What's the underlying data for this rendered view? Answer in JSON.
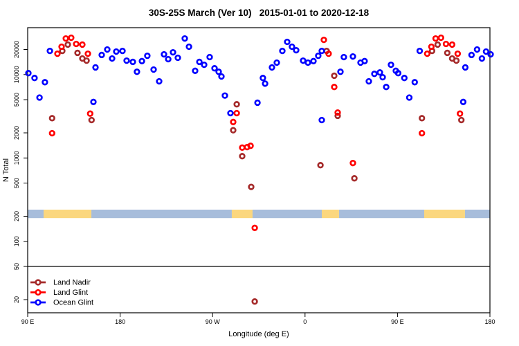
{
  "title": "30S-25S March (Ver 10)   2015-01-01 to 2020-12-18",
  "axes": {
    "x_label": "Longitude (deg E)",
    "y_label": "N Total",
    "x_ticks": [
      {
        "deg": 90,
        "label": "90 E"
      },
      {
        "deg": 180,
        "label": "180"
      },
      {
        "deg": 270,
        "label": "90 W"
      },
      {
        "deg": 360,
        "label": "0"
      },
      {
        "deg": 450,
        "label": "90 E"
      },
      {
        "deg": 540,
        "label": "180"
      }
    ],
    "y_tick_labels": [
      "20000",
      "10000",
      "5000",
      "2000",
      "1000",
      "500",
      "200",
      "100",
      "50",
      "20"
    ],
    "y_tick_values": [
      20000,
      10000,
      5000,
      2000,
      1000,
      500,
      200,
      100,
      50,
      20
    ]
  },
  "legend": [
    {
      "label": "Land Nadir",
      "color": "#A52A2A"
    },
    {
      "label": "Land Glint",
      "color": "#FF0000"
    },
    {
      "label": "Ocean Glint",
      "color": "#0000FF"
    }
  ],
  "colors": {
    "land_nadir": "#A52A2A",
    "land_glint": "#FF0000",
    "ocean_glint": "#0000FF",
    "strip_ocean": "#A7BDDB",
    "strip_land": "#FBD77E",
    "frame": "#000000"
  },
  "chart_data": {
    "type": "scatter",
    "title": "30S-25S March (Ver 10)   2015-01-01 to 2020-12-18",
    "xlabel": "Longitude (deg E)",
    "ylabel": "N Total",
    "x_axis": {
      "note": "longitude unwrapped, deg E from 90 to 540 (wraps past 180 and 360)",
      "domain": [
        90,
        540
      ],
      "tick_step": 90
    },
    "y_axis": {
      "scale": "log10",
      "domain": [
        14,
        36000
      ],
      "ticks": [
        20,
        50,
        100,
        200,
        500,
        1000,
        2000,
        5000,
        10000,
        20000
      ]
    },
    "ref_line_y": 50,
    "map_strip": {
      "y_range": [
        190,
        240
      ],
      "segments": [
        {
          "kind": "ocean",
          "deg": [
            90,
            105.5
          ]
        },
        {
          "kind": "land",
          "deg": [
            105.5,
            152
          ]
        },
        {
          "kind": "ocean",
          "deg": [
            152,
            288.7
          ]
        },
        {
          "kind": "land",
          "deg": [
            288.7,
            308.9
          ]
        },
        {
          "kind": "ocean",
          "deg": [
            308.9,
            376.3
          ]
        },
        {
          "kind": "land",
          "deg": [
            376.3,
            393.1
          ]
        },
        {
          "kind": "ocean",
          "deg": [
            393.1,
            476
          ]
        },
        {
          "kind": "land",
          "deg": [
            476,
            515.7
          ]
        },
        {
          "kind": "ocean",
          "deg": [
            515.7,
            540
          ]
        }
      ]
    },
    "series": [
      {
        "name": "Land Nadir",
        "color": "#A52A2A",
        "points": [
          [
            113.8,
            3000
          ],
          [
            123.7,
            19200
          ],
          [
            129.1,
            22900
          ],
          [
            138.5,
            18200
          ],
          [
            143.2,
            15600
          ],
          [
            147.3,
            14700
          ],
          [
            152.2,
            2850
          ],
          [
            290.1,
            2150
          ],
          [
            293.5,
            4400
          ],
          [
            298.8,
            1050
          ],
          [
            307.6,
            450
          ],
          [
            311,
            19
          ],
          [
            375,
            820
          ],
          [
            381,
            19200
          ],
          [
            388.4,
            9700
          ],
          [
            391.8,
            3200
          ],
          [
            408,
            570
          ],
          [
            473.8,
            3000
          ],
          [
            483.7,
            19200
          ],
          [
            489.1,
            22900
          ],
          [
            498.5,
            18200
          ],
          [
            503.2,
            15600
          ],
          [
            507.3,
            14700
          ],
          [
            512.2,
            2850
          ]
        ]
      },
      {
        "name": "Land Glint",
        "color": "#FF0000",
        "points": [
          [
            113.8,
            1980
          ],
          [
            119,
            17800
          ],
          [
            123,
            21600
          ],
          [
            127.1,
            27100
          ],
          [
            132.4,
            27700
          ],
          [
            137.2,
            23300
          ],
          [
            143.2,
            22900
          ],
          [
            148.6,
            17800
          ],
          [
            150.8,
            3400
          ],
          [
            290.1,
            2700
          ],
          [
            293.5,
            3450
          ],
          [
            298.8,
            1330
          ],
          [
            303.6,
            1350
          ],
          [
            307,
            1400
          ],
          [
            311,
            145
          ],
          [
            378.3,
            26100
          ],
          [
            383,
            17800
          ],
          [
            388.4,
            7100
          ],
          [
            391.8,
            3500
          ],
          [
            406.6,
            870
          ],
          [
            473.8,
            1980
          ],
          [
            479,
            17800
          ],
          [
            483,
            21600
          ],
          [
            487.1,
            27100
          ],
          [
            492.4,
            27700
          ],
          [
            497.2,
            23300
          ],
          [
            503.2,
            22900
          ],
          [
            508.6,
            17800
          ],
          [
            510.8,
            3400
          ]
        ]
      },
      {
        "name": "Ocean Glint",
        "color": "#0000FF",
        "points": [
          [
            90.7,
            10400
          ],
          [
            96.7,
            9100
          ],
          [
            101.5,
            5300
          ],
          [
            106.8,
            8100
          ],
          [
            111.6,
            19200
          ],
          [
            154,
            4700
          ],
          [
            156,
            12200
          ],
          [
            162.1,
            17200
          ],
          [
            167.5,
            20000
          ],
          [
            172.2,
            15600
          ],
          [
            176.2,
            18900
          ],
          [
            182.3,
            19200
          ],
          [
            186.3,
            14700
          ],
          [
            192.4,
            14200
          ],
          [
            196.4,
            10800
          ],
          [
            201.2,
            14500
          ],
          [
            206.5,
            16800
          ],
          [
            212.6,
            11500
          ],
          [
            218,
            8300
          ],
          [
            222.7,
            17500
          ],
          [
            226.8,
            15300
          ],
          [
            231.5,
            18500
          ],
          [
            236.2,
            15900
          ],
          [
            242.9,
            27100
          ],
          [
            247,
            21600
          ],
          [
            253,
            11100
          ],
          [
            257.1,
            14200
          ],
          [
            261.8,
            13100
          ],
          [
            267.2,
            16200
          ],
          [
            271.9,
            11900
          ],
          [
            275.9,
            10800
          ],
          [
            278.6,
            9500
          ],
          [
            282,
            5600
          ],
          [
            287.4,
            3450
          ],
          [
            313.7,
            4600
          ],
          [
            319,
            9100
          ],
          [
            321.1,
            7800
          ],
          [
            327.8,
            12200
          ],
          [
            332.5,
            13900
          ],
          [
            337.9,
            19200
          ],
          [
            342.6,
            24700
          ],
          [
            347.3,
            21600
          ],
          [
            351.4,
            19600
          ],
          [
            358.1,
            14700
          ],
          [
            362.8,
            13900
          ],
          [
            368.2,
            14500
          ],
          [
            372.9,
            16800
          ],
          [
            376.3,
            19200
          ],
          [
            376.3,
            2850
          ],
          [
            394.5,
            10800
          ],
          [
            397.8,
            16200
          ],
          [
            406.6,
            16500
          ],
          [
            414,
            13900
          ],
          [
            418,
            14500
          ],
          [
            422.1,
            8300
          ],
          [
            427.5,
            10200
          ],
          [
            432.9,
            10600
          ],
          [
            435.6,
            9300
          ],
          [
            439,
            7100
          ],
          [
            443.7,
            13100
          ],
          [
            448.4,
            11100
          ],
          [
            450.7,
            10400
          ],
          [
            456.7,
            9100
          ],
          [
            461.5,
            5300
          ],
          [
            466.8,
            8100
          ],
          [
            471.6,
            19200
          ],
          [
            514,
            4700
          ],
          [
            516,
            12200
          ],
          [
            522.1,
            17200
          ],
          [
            527.5,
            20000
          ],
          [
            532.2,
            15600
          ],
          [
            536.2,
            18900
          ],
          [
            540.7,
            17500
          ]
        ]
      }
    ],
    "legend_position": "bottom-left",
    "grid": false
  }
}
